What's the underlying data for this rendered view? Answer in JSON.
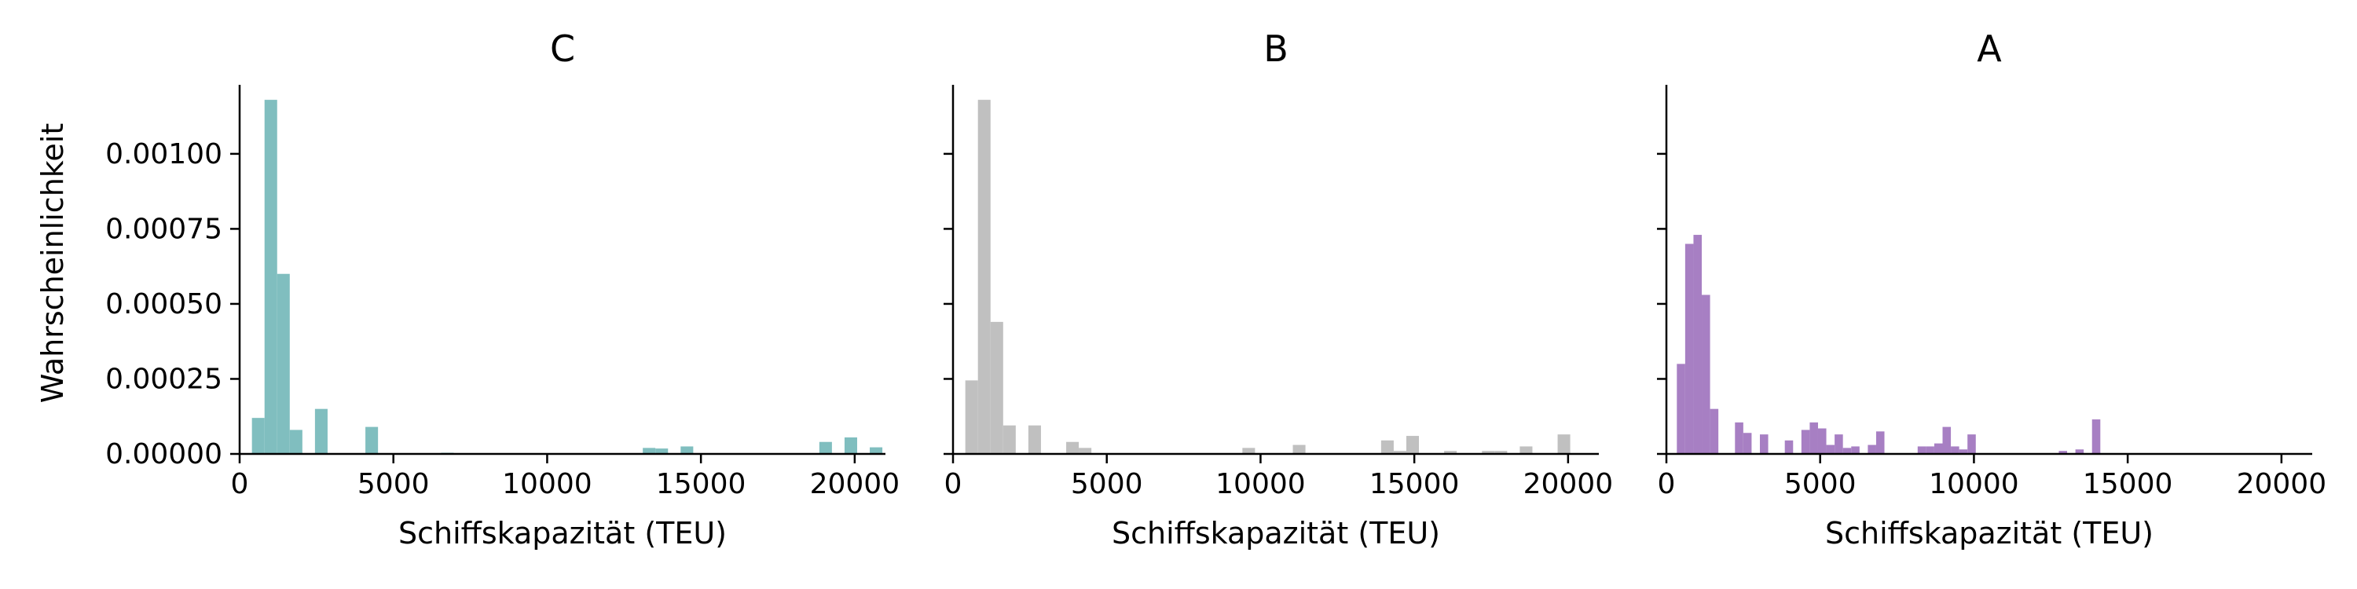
{
  "chart_data": {
    "type": "bar",
    "ylabel": "Wahrscheinlichkeit",
    "ylim": [
      0,
      0.00123
    ],
    "yticks": [
      "0.00000",
      "0.00025",
      "0.00050",
      "0.00075",
      "0.00100"
    ],
    "ytick_values": [
      0,
      0.00025,
      0.0005,
      0.00075,
      0.001
    ],
    "xlim": [
      0,
      21000
    ],
    "xticks": [
      "0",
      "5000",
      "10000",
      "15000",
      "20000"
    ],
    "xtick_values": [
      0,
      5000,
      10000,
      15000,
      20000
    ],
    "grid": false,
    "panels": [
      {
        "title": "C",
        "xlabel": "Schiffskapazität (TEU)",
        "color": "#80bebf",
        "bins": [
          {
            "x0": 400,
            "x1": 810,
            "y": 0.00012
          },
          {
            "x0": 810,
            "x1": 1220,
            "y": 0.00118
          },
          {
            "x0": 1220,
            "x1": 1630,
            "y": 0.0006
          },
          {
            "x0": 1630,
            "x1": 2040,
            "y": 8e-05
          },
          {
            "x0": 2450,
            "x1": 2860,
            "y": 0.00015
          },
          {
            "x0": 4090,
            "x1": 4500,
            "y": 9e-05
          },
          {
            "x0": 6550,
            "x1": 6960,
            "y": 4e-06
          },
          {
            "x0": 13110,
            "x1": 13520,
            "y": 2e-05
          },
          {
            "x0": 13520,
            "x1": 13930,
            "y": 1.8e-05
          },
          {
            "x0": 14340,
            "x1": 14750,
            "y": 2.5e-05
          },
          {
            "x0": 18850,
            "x1": 19260,
            "y": 4e-05
          },
          {
            "x0": 19670,
            "x1": 20080,
            "y": 5.5e-05
          },
          {
            "x0": 20490,
            "x1": 20900,
            "y": 2.2e-05
          }
        ]
      },
      {
        "title": "B",
        "xlabel": "Schiffskapazität (TEU)",
        "color": "#c0c0c0",
        "bins": [
          {
            "x0": 400,
            "x1": 810,
            "y": 0.000245
          },
          {
            "x0": 810,
            "x1": 1220,
            "y": 0.00118
          },
          {
            "x0": 1220,
            "x1": 1630,
            "y": 0.00044
          },
          {
            "x0": 1630,
            "x1": 2040,
            "y": 9.5e-05
          },
          {
            "x0": 2450,
            "x1": 2860,
            "y": 9.5e-05
          },
          {
            "x0": 3680,
            "x1": 4090,
            "y": 4e-05
          },
          {
            "x0": 4090,
            "x1": 4500,
            "y": 2e-05
          },
          {
            "x0": 9410,
            "x1": 9820,
            "y": 2e-05
          },
          {
            "x0": 11050,
            "x1": 11460,
            "y": 3e-05
          },
          {
            "x0": 13920,
            "x1": 14330,
            "y": 4.5e-05
          },
          {
            "x0": 14330,
            "x1": 14740,
            "y": 1e-05
          },
          {
            "x0": 14740,
            "x1": 15150,
            "y": 6e-05
          },
          {
            "x0": 15970,
            "x1": 16380,
            "y": 1e-05
          },
          {
            "x0": 17200,
            "x1": 17610,
            "y": 1e-05
          },
          {
            "x0": 17610,
            "x1": 18020,
            "y": 1e-05
          },
          {
            "x0": 18430,
            "x1": 18840,
            "y": 2.5e-05
          },
          {
            "x0": 19660,
            "x1": 20070,
            "y": 6.5e-05
          }
        ]
      },
      {
        "title": "A",
        "xlabel": "Schiffskapazität (TEU)",
        "color": "#a77fc3",
        "bins": [
          {
            "x0": 340,
            "x1": 610,
            "y": 0.0003
          },
          {
            "x0": 610,
            "x1": 880,
            "y": 0.0007
          },
          {
            "x0": 880,
            "x1": 1150,
            "y": 0.00073
          },
          {
            "x0": 1150,
            "x1": 1420,
            "y": 0.00053
          },
          {
            "x0": 1420,
            "x1": 1690,
            "y": 0.00015
          },
          {
            "x0": 2230,
            "x1": 2500,
            "y": 0.000105
          },
          {
            "x0": 2500,
            "x1": 2770,
            "y": 7e-05
          },
          {
            "x0": 3040,
            "x1": 3310,
            "y": 6.5e-05
          },
          {
            "x0": 3850,
            "x1": 4120,
            "y": 4.5e-05
          },
          {
            "x0": 4390,
            "x1": 4660,
            "y": 8e-05
          },
          {
            "x0": 4660,
            "x1": 4930,
            "y": 0.000105
          },
          {
            "x0": 4930,
            "x1": 5200,
            "y": 8.5e-05
          },
          {
            "x0": 5200,
            "x1": 5470,
            "y": 3e-05
          },
          {
            "x0": 5470,
            "x1": 5740,
            "y": 6.5e-05
          },
          {
            "x0": 5740,
            "x1": 6010,
            "y": 2e-05
          },
          {
            "x0": 6010,
            "x1": 6280,
            "y": 2.5e-05
          },
          {
            "x0": 6550,
            "x1": 6820,
            "y": 3e-05
          },
          {
            "x0": 6820,
            "x1": 7090,
            "y": 7.5e-05
          },
          {
            "x0": 8170,
            "x1": 8440,
            "y": 2.5e-05
          },
          {
            "x0": 8440,
            "x1": 8710,
            "y": 2.5e-05
          },
          {
            "x0": 8710,
            "x1": 8980,
            "y": 3.5e-05
          },
          {
            "x0": 8980,
            "x1": 9250,
            "y": 9e-05
          },
          {
            "x0": 9250,
            "x1": 9520,
            "y": 2.5e-05
          },
          {
            "x0": 9520,
            "x1": 9790,
            "y": 1.5e-05
          },
          {
            "x0": 9790,
            "x1": 10060,
            "y": 6.5e-05
          },
          {
            "x0": 12760,
            "x1": 13030,
            "y": 1e-05
          },
          {
            "x0": 13300,
            "x1": 13570,
            "y": 1.5e-05
          },
          {
            "x0": 13840,
            "x1": 14110,
            "y": 0.000115
          }
        ]
      }
    ]
  }
}
